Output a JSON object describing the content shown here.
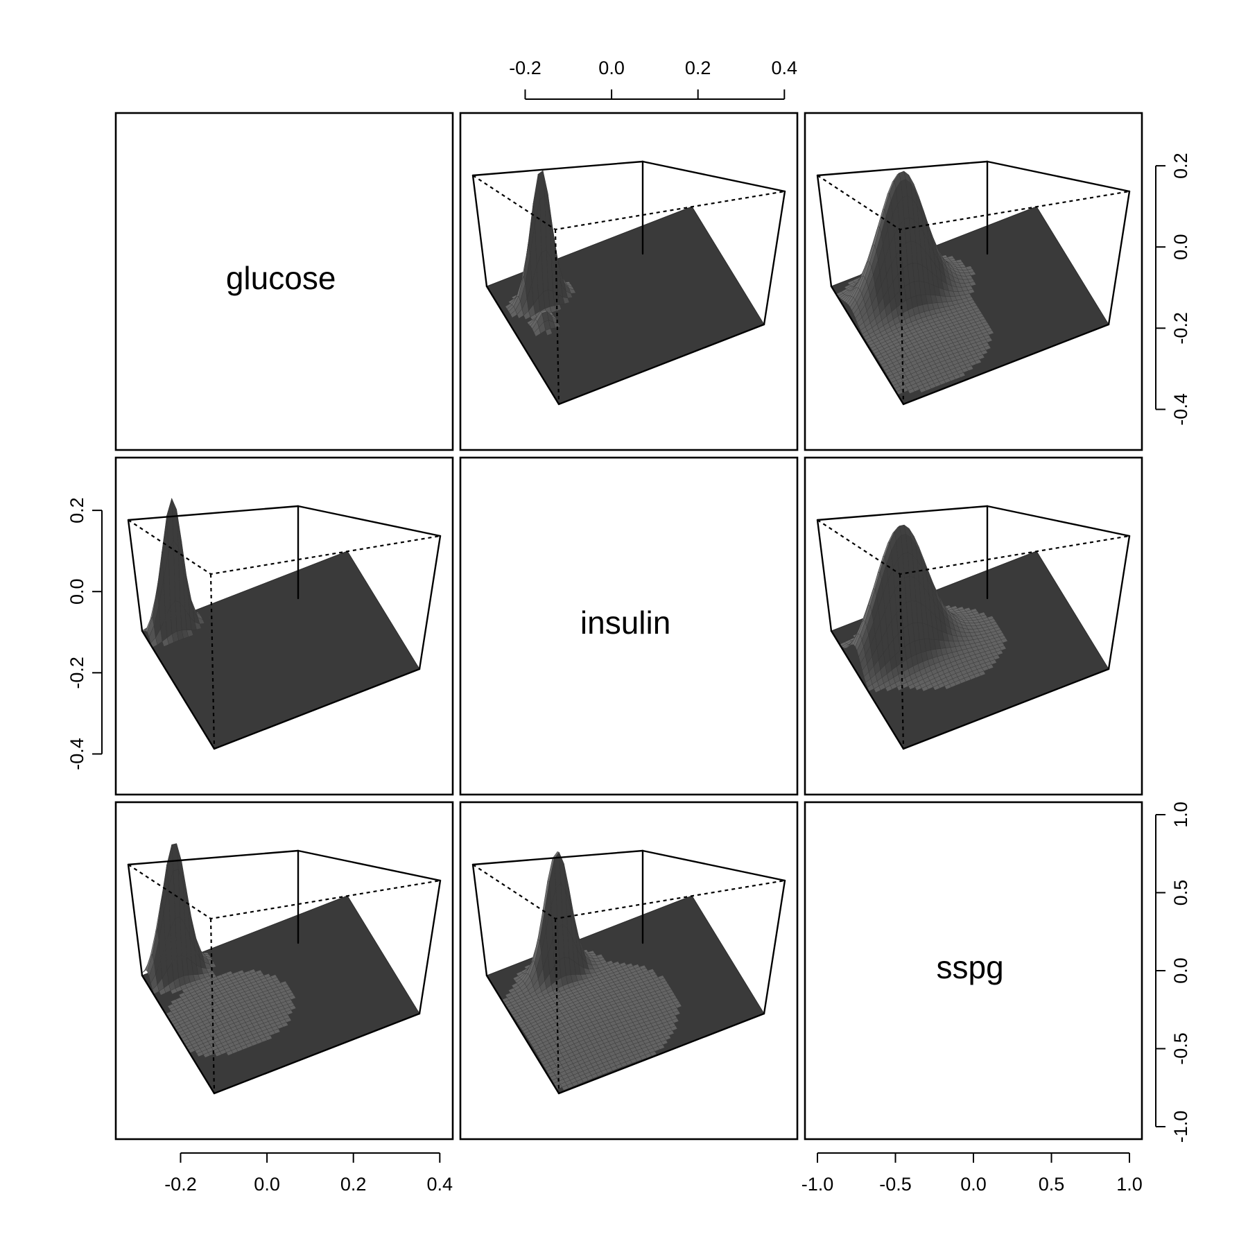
{
  "chart_data": {
    "type": "pairs-3d-density",
    "variables": [
      "glucose",
      "insulin",
      "sspg"
    ],
    "grid": {
      "rows": 3,
      "cols": 3
    },
    "axes": {
      "top": {
        "panel_col": 1,
        "range": [
          -0.35,
          0.43
        ],
        "ticks": [
          -0.2,
          0.0,
          0.2,
          0.4
        ],
        "labels": [
          "-0.2",
          "0.0",
          "0.2",
          "0.4"
        ]
      },
      "right_row0": {
        "panel_row": 0,
        "range": [
          -0.5,
          0.33
        ],
        "ticks": [
          -0.4,
          -0.2,
          0.0,
          0.2
        ],
        "labels": [
          "-0.4",
          "-0.2",
          "0.0",
          "0.2"
        ]
      },
      "left_row1": {
        "panel_row": 1,
        "range": [
          -0.5,
          0.33
        ],
        "ticks": [
          -0.4,
          -0.2,
          0.0,
          0.2
        ],
        "labels": [
          "-0.4",
          "-0.2",
          "0.0",
          "0.2"
        ]
      },
      "bottom_col0": {
        "panel_col": 0,
        "range": [
          -0.35,
          0.43
        ],
        "ticks": [
          -0.2,
          0.0,
          0.2,
          0.4
        ],
        "labels": [
          "-0.2",
          "0.0",
          "0.2",
          "0.4"
        ]
      },
      "bottom_col2": {
        "panel_col": 2,
        "range": [
          -1.08,
          1.08
        ],
        "ticks": [
          -1.0,
          -0.5,
          0.0,
          0.5,
          1.0
        ],
        "labels": [
          "-1.0",
          "-0.5",
          "0.0",
          "0.5",
          "1.0"
        ]
      },
      "right_row2": {
        "panel_row": 2,
        "range": [
          -1.08,
          1.08
        ],
        "ticks": [
          -1.0,
          -0.5,
          0.0,
          0.5,
          1.0
        ],
        "labels": [
          "-1.0",
          "-0.5",
          "0.0",
          "0.5",
          "1.0"
        ]
      }
    },
    "panels": [
      {
        "row": 0,
        "col": 0,
        "kind": "label",
        "text": "glucose"
      },
      {
        "row": 0,
        "col": 1,
        "kind": "surface",
        "peak_u": 0.24,
        "peak_v": 0.18,
        "width_u": 0.035,
        "width_v": 0.05,
        "height": 1.0,
        "secondary": [
          {
            "u": 0.42,
            "v": 0.13,
            "w": 0.03,
            "h": 0.12
          }
        ]
      },
      {
        "row": 0,
        "col": 2,
        "kind": "surface",
        "peak_u": 0.26,
        "peak_v": 0.25,
        "width_u": 0.085,
        "width_v": 0.11,
        "height": 0.95,
        "secondary": [
          {
            "u": 0.65,
            "v": 0.2,
            "w": 0.2,
            "h": 0.04
          }
        ]
      },
      {
        "row": 1,
        "col": 0,
        "kind": "surface",
        "peak_u": 0.07,
        "peak_v": 0.12,
        "width_u": 0.03,
        "width_v": 0.05,
        "height": 1.0,
        "secondary": []
      },
      {
        "row": 1,
        "col": 1,
        "kind": "label",
        "text": "insulin"
      },
      {
        "row": 1,
        "col": 2,
        "kind": "surface",
        "peak_u": 0.33,
        "peak_v": 0.22,
        "width_u": 0.08,
        "width_v": 0.12,
        "height": 0.95,
        "secondary": [
          {
            "u": 0.45,
            "v": 0.4,
            "w": 0.15,
            "h": 0.05
          }
        ]
      },
      {
        "row": 2,
        "col": 0,
        "kind": "surface",
        "peak_u": 0.07,
        "peak_v": 0.13,
        "width_u": 0.04,
        "width_v": 0.06,
        "height": 1.0,
        "secondary": [
          {
            "u": 0.5,
            "v": 0.25,
            "w": 0.2,
            "h": 0.03
          }
        ]
      },
      {
        "row": 2,
        "col": 1,
        "kind": "surface",
        "peak_u": 0.18,
        "peak_v": 0.28,
        "width_u": 0.045,
        "width_v": 0.06,
        "height": 0.95,
        "secondary": [
          {
            "u": 0.6,
            "v": 0.25,
            "w": 0.25,
            "h": 0.05
          }
        ]
      },
      {
        "row": 2,
        "col": 2,
        "kind": "label",
        "text": "sspg"
      }
    ]
  }
}
